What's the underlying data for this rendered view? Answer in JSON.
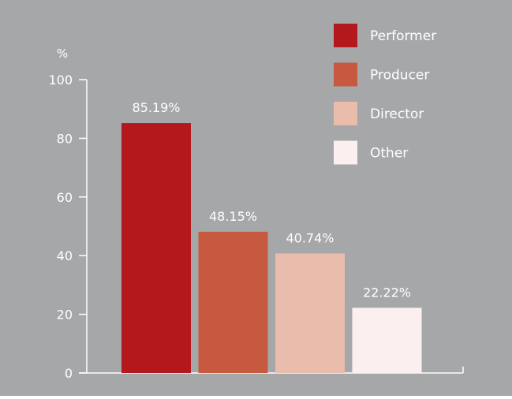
{
  "chart_data": {
    "type": "bar",
    "ylabel": "%",
    "ylim": [
      0,
      100
    ],
    "yticks": [
      0,
      20,
      40,
      60,
      80,
      100
    ],
    "grid": false,
    "legend_position": "top-right",
    "categories": [
      "Performer",
      "Producer",
      "Director",
      "Other"
    ],
    "values": [
      85.19,
      48.15,
      40.74,
      22.22
    ],
    "value_labels": [
      "85.19%",
      "48.15%",
      "40.74%",
      "22.22%"
    ],
    "colors": [
      "#b3181d",
      "#c65940",
      "#e9bcab",
      "#fbf0ef"
    ],
    "background_color": "#a6a7a9",
    "text_color": "#ffffff"
  }
}
